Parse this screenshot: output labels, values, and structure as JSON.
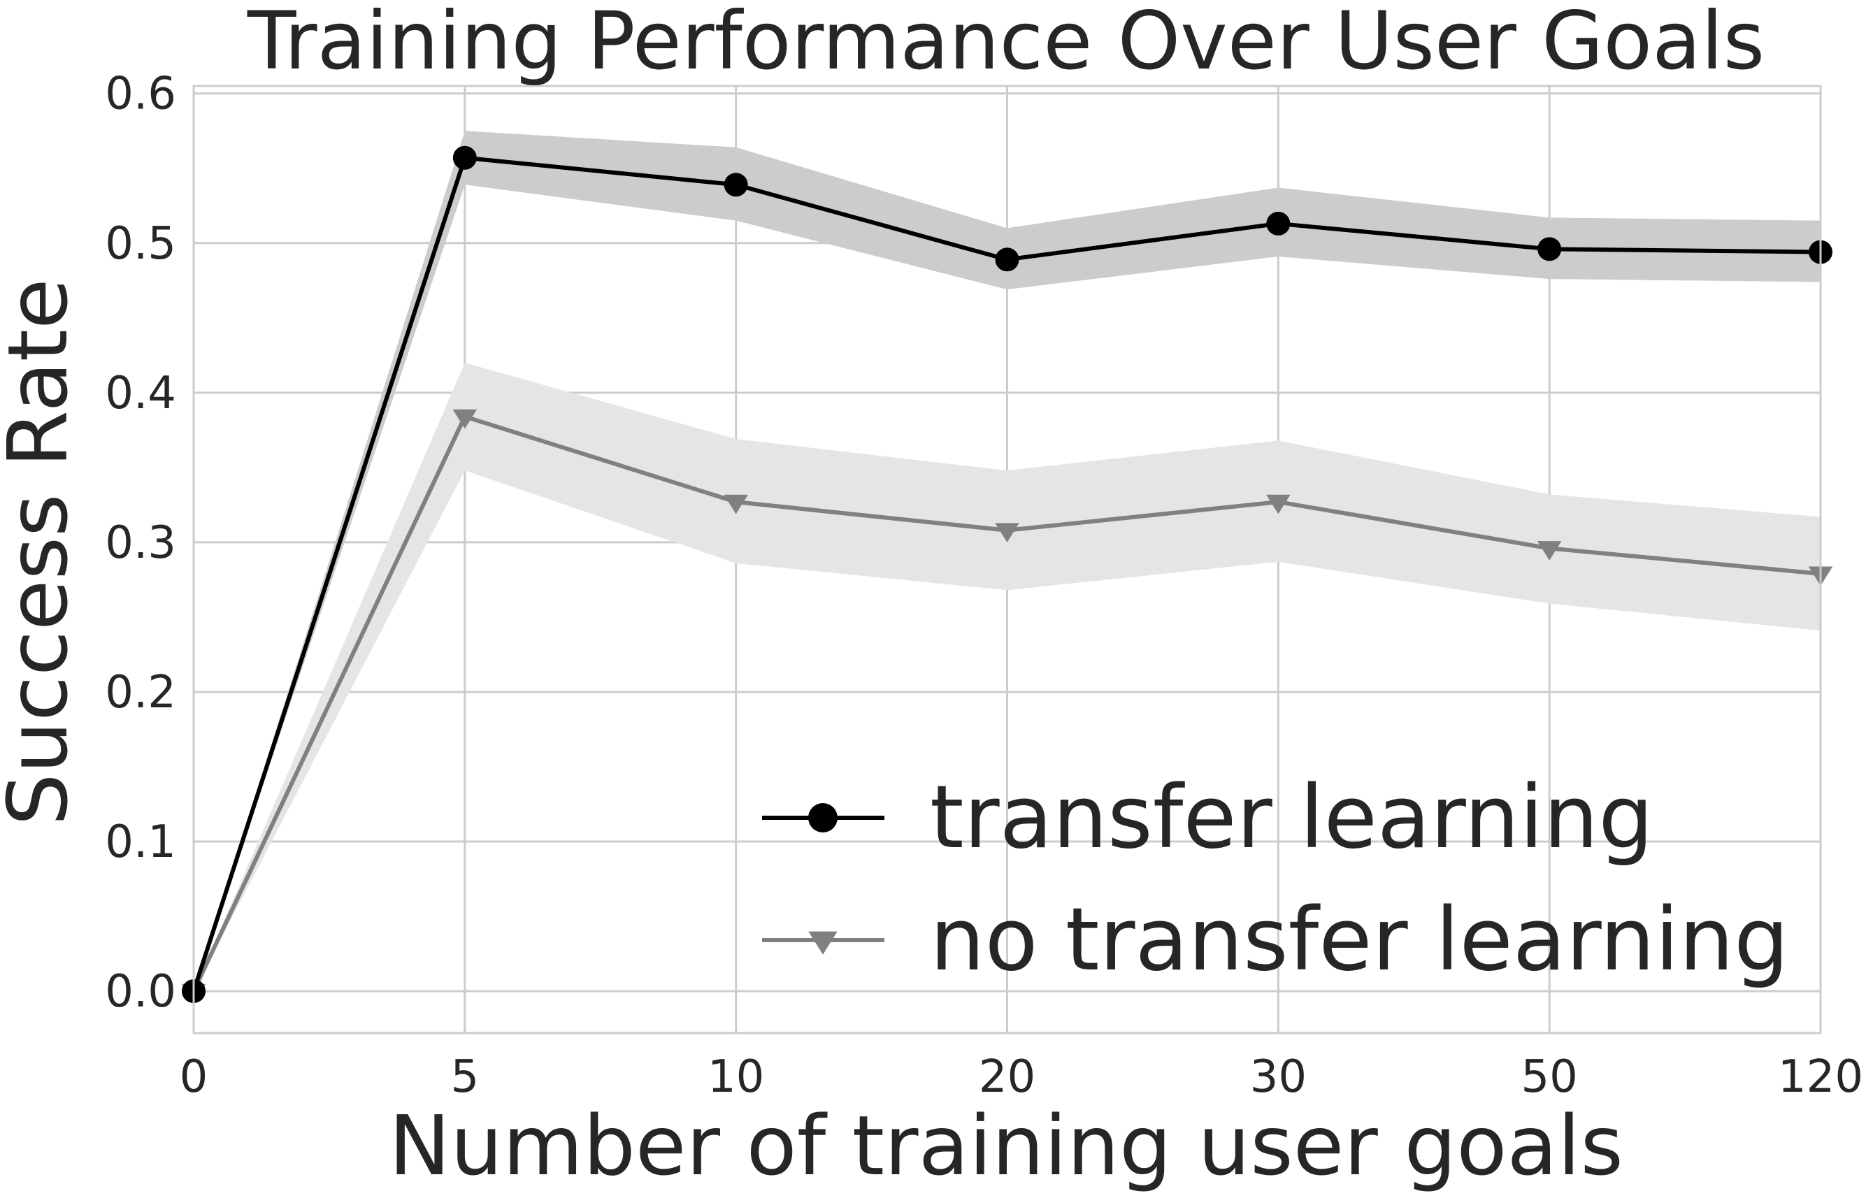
{
  "chart_data": {
    "type": "line",
    "title": "Training Performance Over User Goals",
    "xlabel": "Number of training user goals",
    "ylabel": "Success Rate",
    "categories": [
      "0",
      "5",
      "10",
      "20",
      "30",
      "50",
      "120"
    ],
    "ylim": [
      -0.028,
      0.605
    ],
    "yticks": [
      "0.0",
      "0.1",
      "0.2",
      "0.3",
      "0.4",
      "0.5",
      "0.6"
    ],
    "grid": true,
    "legend_position": "lower-right",
    "series": [
      {
        "name": "transfer learning",
        "marker": "circle",
        "color": "#000000",
        "band_color": "#cccccc",
        "values": [
          0.0,
          0.557,
          0.539,
          0.489,
          0.513,
          0.496,
          0.494
        ],
        "lower": [
          0.0,
          0.539,
          0.515,
          0.469,
          0.491,
          0.476,
          0.474
        ],
        "upper": [
          0.0,
          0.575,
          0.564,
          0.51,
          0.537,
          0.517,
          0.515
        ]
      },
      {
        "name": "no transfer learning",
        "marker": "triangle-down",
        "color": "#808080",
        "band_color": "#e5e5e5",
        "values": [
          0.0,
          0.384,
          0.327,
          0.308,
          0.327,
          0.296,
          0.279
        ],
        "lower": [
          0.0,
          0.348,
          0.286,
          0.268,
          0.287,
          0.259,
          0.241
        ],
        "upper": [
          0.0,
          0.42,
          0.369,
          0.348,
          0.368,
          0.332,
          0.317
        ]
      }
    ]
  }
}
